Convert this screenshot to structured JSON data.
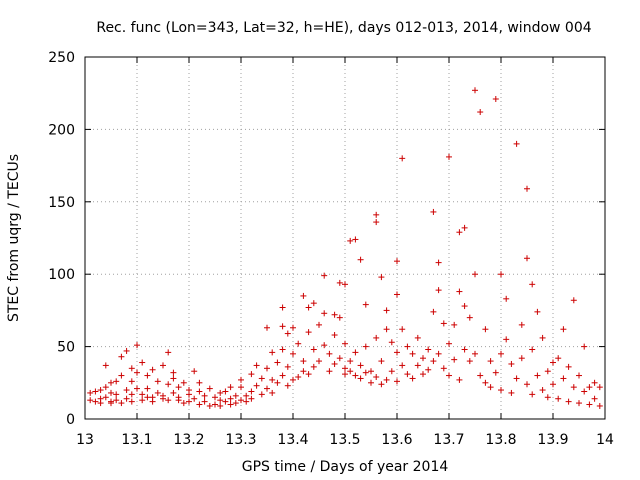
{
  "chart_data": {
    "type": "scatter",
    "title": "Rec. func (Lon=343, Lat=32, h=HE), days 012-013, 2014, window 004",
    "xlabel": "GPS time / Days of year 2014",
    "ylabel": "STEC from uqrg / TECUs",
    "xlim": [
      13,
      14
    ],
    "ylim": [
      0,
      250
    ],
    "xticks": [
      "13",
      "13.1",
      "13.2",
      "13.3",
      "13.4",
      "13.5",
      "13.6",
      "13.7",
      "13.8",
      "13.9",
      "14"
    ],
    "yticks": [
      "0",
      "50",
      "100",
      "150",
      "200",
      "250"
    ],
    "grid": true,
    "marker": "+",
    "color": "#cc0000",
    "series": [
      {
        "name": "stec",
        "points": [
          [
            13.01,
            18
          ],
          [
            13.01,
            13
          ],
          [
            13.02,
            12
          ],
          [
            13.02,
            19
          ],
          [
            13.03,
            11
          ],
          [
            13.03,
            14
          ],
          [
            13.03,
            20
          ],
          [
            13.04,
            37
          ],
          [
            13.04,
            22
          ],
          [
            13.04,
            15
          ],
          [
            13.05,
            11
          ],
          [
            13.05,
            12
          ],
          [
            13.05,
            18
          ],
          [
            13.05,
            25
          ],
          [
            13.06,
            17
          ],
          [
            13.06,
            13
          ],
          [
            13.06,
            26
          ],
          [
            13.07,
            11
          ],
          [
            13.07,
            43
          ],
          [
            13.07,
            30
          ],
          [
            13.08,
            20
          ],
          [
            13.08,
            47
          ],
          [
            13.08,
            14
          ],
          [
            13.09,
            12
          ],
          [
            13.09,
            35
          ],
          [
            13.09,
            26
          ],
          [
            13.09,
            17
          ],
          [
            13.1,
            51
          ],
          [
            13.1,
            32
          ],
          [
            13.1,
            21
          ],
          [
            13.11,
            17
          ],
          [
            13.11,
            13
          ],
          [
            13.11,
            39
          ],
          [
            13.12,
            21
          ],
          [
            13.12,
            15
          ],
          [
            13.12,
            30
          ],
          [
            13.13,
            12
          ],
          [
            13.13,
            34
          ],
          [
            13.13,
            15
          ],
          [
            13.14,
            26
          ],
          [
            13.14,
            18
          ],
          [
            13.15,
            16
          ],
          [
            13.15,
            37
          ],
          [
            13.15,
            14
          ],
          [
            13.16,
            46
          ],
          [
            13.16,
            24
          ],
          [
            13.16,
            13
          ],
          [
            13.17,
            28
          ],
          [
            13.17,
            18
          ],
          [
            13.17,
            32
          ],
          [
            13.18,
            13
          ],
          [
            13.18,
            22
          ],
          [
            13.18,
            15
          ],
          [
            13.19,
            25
          ],
          [
            13.19,
            11
          ],
          [
            13.2,
            17
          ],
          [
            13.2,
            20
          ],
          [
            13.2,
            12
          ],
          [
            13.21,
            33
          ],
          [
            13.21,
            14
          ],
          [
            13.22,
            25
          ],
          [
            13.22,
            10
          ],
          [
            13.22,
            19
          ],
          [
            13.23,
            16
          ],
          [
            13.23,
            12
          ],
          [
            13.24,
            9
          ],
          [
            13.24,
            21
          ],
          [
            13.25,
            15
          ],
          [
            13.25,
            10
          ],
          [
            13.26,
            18
          ],
          [
            13.26,
            13
          ],
          [
            13.26,
            9
          ],
          [
            13.27,
            19
          ],
          [
            13.27,
            12
          ],
          [
            13.28,
            14
          ],
          [
            13.28,
            10
          ],
          [
            13.28,
            22
          ],
          [
            13.29,
            16
          ],
          [
            13.29,
            11
          ],
          [
            13.3,
            22
          ],
          [
            13.3,
            13
          ],
          [
            13.3,
            27
          ],
          [
            13.31,
            16
          ],
          [
            13.31,
            12
          ],
          [
            13.32,
            31
          ],
          [
            13.32,
            19
          ],
          [
            13.32,
            14
          ],
          [
            13.33,
            37
          ],
          [
            13.33,
            23
          ],
          [
            13.34,
            17
          ],
          [
            13.34,
            28
          ],
          [
            13.35,
            63
          ],
          [
            13.35,
            35
          ],
          [
            13.35,
            21
          ],
          [
            13.36,
            27
          ],
          [
            13.36,
            46
          ],
          [
            13.36,
            18
          ],
          [
            13.37,
            25
          ],
          [
            13.37,
            39
          ],
          [
            13.38,
            77
          ],
          [
            13.38,
            64
          ],
          [
            13.38,
            48
          ],
          [
            13.38,
            30
          ],
          [
            13.39,
            23
          ],
          [
            13.39,
            59
          ],
          [
            13.39,
            36
          ],
          [
            13.4,
            63
          ],
          [
            13.4,
            27
          ],
          [
            13.4,
            45
          ],
          [
            13.41,
            29
          ],
          [
            13.41,
            52
          ],
          [
            13.42,
            85
          ],
          [
            13.42,
            40
          ],
          [
            13.42,
            33
          ],
          [
            13.43,
            77
          ],
          [
            13.43,
            60
          ],
          [
            13.43,
            31
          ],
          [
            13.44,
            80
          ],
          [
            13.44,
            48
          ],
          [
            13.44,
            36
          ],
          [
            13.45,
            65
          ],
          [
            13.45,
            40
          ],
          [
            13.46,
            99
          ],
          [
            13.46,
            73
          ],
          [
            13.46,
            51
          ],
          [
            13.47,
            33
          ],
          [
            13.47,
            45
          ],
          [
            13.48,
            72
          ],
          [
            13.48,
            58
          ],
          [
            13.48,
            38
          ],
          [
            13.49,
            94
          ],
          [
            13.49,
            70
          ],
          [
            13.49,
            42
          ],
          [
            13.5,
            93
          ],
          [
            13.5,
            52
          ],
          [
            13.5,
            35
          ],
          [
            13.5,
            31
          ],
          [
            13.51,
            123
          ],
          [
            13.51,
            40
          ],
          [
            13.51,
            33
          ],
          [
            13.52,
            124
          ],
          [
            13.52,
            46
          ],
          [
            13.52,
            30
          ],
          [
            13.53,
            110
          ],
          [
            13.53,
            37
          ],
          [
            13.53,
            28
          ],
          [
            13.54,
            79
          ],
          [
            13.54,
            50
          ],
          [
            13.54,
            32
          ],
          [
            13.55,
            33
          ],
          [
            13.55,
            25
          ],
          [
            13.56,
            141
          ],
          [
            13.56,
            136
          ],
          [
            13.56,
            56
          ],
          [
            13.56,
            29
          ],
          [
            13.57,
            98
          ],
          [
            13.57,
            40
          ],
          [
            13.57,
            24
          ],
          [
            13.58,
            75
          ],
          [
            13.58,
            62
          ],
          [
            13.58,
            27
          ],
          [
            13.59,
            53
          ],
          [
            13.59,
            33
          ],
          [
            13.6,
            109
          ],
          [
            13.6,
            86
          ],
          [
            13.6,
            46
          ],
          [
            13.6,
            26
          ],
          [
            13.61,
            180
          ],
          [
            13.61,
            62
          ],
          [
            13.61,
            37
          ],
          [
            13.62,
            50
          ],
          [
            13.62,
            31
          ],
          [
            13.63,
            45
          ],
          [
            13.63,
            28
          ],
          [
            13.64,
            56
          ],
          [
            13.64,
            37
          ],
          [
            13.65,
            42
          ],
          [
            13.65,
            31
          ],
          [
            13.66,
            48
          ],
          [
            13.66,
            34
          ],
          [
            13.67,
            143
          ],
          [
            13.67,
            74
          ],
          [
            13.67,
            40
          ],
          [
            13.68,
            108
          ],
          [
            13.68,
            89
          ],
          [
            13.68,
            45
          ],
          [
            13.69,
            66
          ],
          [
            13.69,
            35
          ],
          [
            13.7,
            181
          ],
          [
            13.7,
            52
          ],
          [
            13.7,
            30
          ],
          [
            13.71,
            65
          ],
          [
            13.71,
            41
          ],
          [
            13.72,
            129
          ],
          [
            13.72,
            88
          ],
          [
            13.72,
            27
          ],
          [
            13.73,
            132
          ],
          [
            13.73,
            78
          ],
          [
            13.73,
            48
          ],
          [
            13.74,
            70
          ],
          [
            13.74,
            40
          ],
          [
            13.75,
            227
          ],
          [
            13.75,
            100
          ],
          [
            13.75,
            45
          ],
          [
            13.76,
            212
          ],
          [
            13.76,
            30
          ],
          [
            13.77,
            62
          ],
          [
            13.77,
            25
          ],
          [
            13.78,
            40
          ],
          [
            13.78,
            22
          ],
          [
            13.79,
            221
          ],
          [
            13.79,
            32
          ],
          [
            13.8,
            100
          ],
          [
            13.8,
            45
          ],
          [
            13.8,
            20
          ],
          [
            13.81,
            83
          ],
          [
            13.81,
            55
          ],
          [
            13.82,
            38
          ],
          [
            13.82,
            18
          ],
          [
            13.83,
            190
          ],
          [
            13.83,
            28
          ],
          [
            13.84,
            65
          ],
          [
            13.84,
            42
          ],
          [
            13.85,
            159
          ],
          [
            13.85,
            111
          ],
          [
            13.85,
            24
          ],
          [
            13.86,
            93
          ],
          [
            13.86,
            48
          ],
          [
            13.86,
            17
          ],
          [
            13.87,
            74
          ],
          [
            13.87,
            30
          ],
          [
            13.88,
            56
          ],
          [
            13.88,
            20
          ],
          [
            13.89,
            33
          ],
          [
            13.89,
            15
          ],
          [
            13.9,
            39
          ],
          [
            13.9,
            24
          ],
          [
            13.91,
            42
          ],
          [
            13.91,
            14
          ],
          [
            13.92,
            62
          ],
          [
            13.92,
            28
          ],
          [
            13.93,
            36
          ],
          [
            13.93,
            12
          ],
          [
            13.94,
            82
          ],
          [
            13.94,
            22
          ],
          [
            13.95,
            30
          ],
          [
            13.95,
            11
          ],
          [
            13.96,
            50
          ],
          [
            13.96,
            19
          ],
          [
            13.97,
            22
          ],
          [
            13.97,
            10
          ],
          [
            13.98,
            25
          ],
          [
            13.98,
            14
          ],
          [
            13.99,
            22
          ],
          [
            13.99,
            9
          ]
        ]
      }
    ]
  }
}
